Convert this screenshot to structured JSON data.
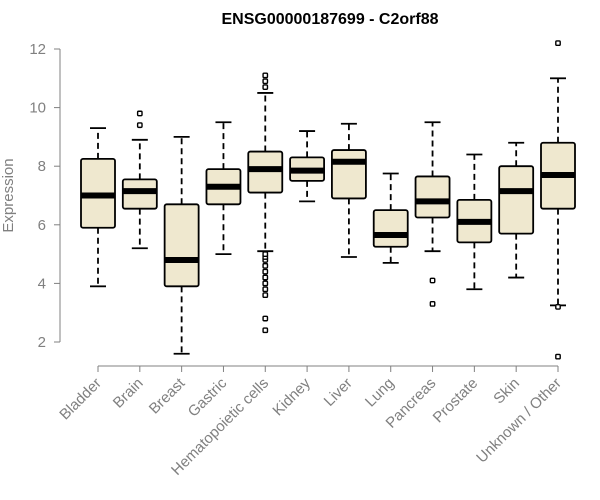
{
  "chart_data": {
    "type": "box",
    "title": "ENSG00000187699 - C2orf88",
    "xlabel": "",
    "ylabel": "Expression",
    "ylim": [
      1.4,
      12.4
    ],
    "y_ticks": [
      2,
      4,
      6,
      8,
      10,
      12
    ],
    "grid": false,
    "legend": "none",
    "box_fill_color": "#efe8cf",
    "box_stroke_color": "#000000",
    "median_color": "#000000",
    "axis_color": "#808080",
    "categories": [
      "Bladder",
      "Brain",
      "Breast",
      "Gastric",
      "Hematopoietic cells",
      "Kidney",
      "Liver",
      "Lung",
      "Pancreas",
      "Prostate",
      "Skin",
      "Unknown / Other"
    ],
    "boxes": [
      {
        "category": "Bladder",
        "whisker_low": 3.9,
        "q1": 5.9,
        "median": 7.0,
        "q3": 8.25,
        "whisker_high": 9.3,
        "outliers": []
      },
      {
        "category": "Brain",
        "whisker_low": 5.2,
        "q1": 6.55,
        "median": 7.15,
        "q3": 7.55,
        "whisker_high": 8.9,
        "outliers": [
          9.4,
          9.8
        ]
      },
      {
        "category": "Breast",
        "whisker_low": 1.6,
        "q1": 3.9,
        "median": 4.8,
        "q3": 6.7,
        "whisker_high": 9.0,
        "outliers": []
      },
      {
        "category": "Gastric",
        "whisker_low": 5.0,
        "q1": 6.7,
        "median": 7.3,
        "q3": 7.9,
        "whisker_high": 9.5,
        "outliers": []
      },
      {
        "category": "Hematopoietic cells",
        "whisker_low": 5.1,
        "q1": 7.1,
        "median": 7.9,
        "q3": 8.5,
        "whisker_high": 10.5,
        "outliers": [
          2.4,
          2.8,
          3.6,
          3.8,
          4.0,
          4.2,
          4.4,
          4.6,
          4.8,
          4.9,
          5.0,
          10.7,
          10.9,
          11.1
        ]
      },
      {
        "category": "Kidney",
        "whisker_low": 6.8,
        "q1": 7.5,
        "median": 7.85,
        "q3": 8.3,
        "whisker_high": 9.2,
        "outliers": []
      },
      {
        "category": "Liver",
        "whisker_low": 4.9,
        "q1": 6.9,
        "median": 8.15,
        "q3": 8.55,
        "whisker_high": 9.45,
        "outliers": []
      },
      {
        "category": "Lung",
        "whisker_low": 4.7,
        "q1": 5.25,
        "median": 5.65,
        "q3": 6.5,
        "whisker_high": 7.75,
        "outliers": []
      },
      {
        "category": "Pancreas",
        "whisker_low": 5.1,
        "q1": 6.25,
        "median": 6.8,
        "q3": 7.65,
        "whisker_high": 9.5,
        "outliers": [
          3.3,
          4.1
        ]
      },
      {
        "category": "Prostate",
        "whisker_low": 3.8,
        "q1": 5.4,
        "median": 6.1,
        "q3": 6.85,
        "whisker_high": 8.4,
        "outliers": []
      },
      {
        "category": "Skin",
        "whisker_low": 4.2,
        "q1": 5.7,
        "median": 7.15,
        "q3": 8.0,
        "whisker_high": 8.8,
        "outliers": []
      },
      {
        "category": "Unknown / Other",
        "whisker_low": 3.25,
        "q1": 6.55,
        "median": 7.7,
        "q3": 8.8,
        "whisker_high": 11.0,
        "outliers": [
          1.5,
          3.2,
          12.2
        ]
      }
    ]
  }
}
